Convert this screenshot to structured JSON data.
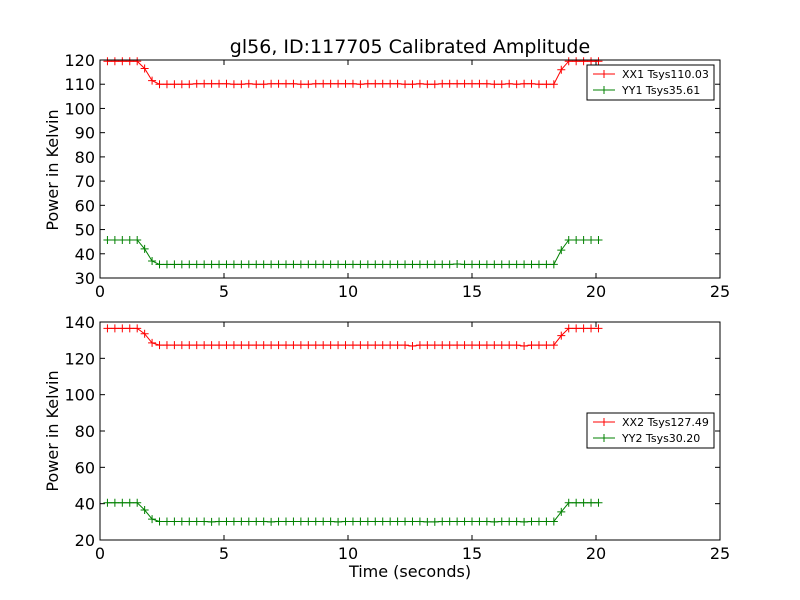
{
  "chart_data": [
    {
      "type": "line",
      "title": "gl56, ID:117705 Calibrated Amplitude",
      "xlabel": "",
      "ylabel": "Power in Kelvin",
      "xlim": [
        0,
        25
      ],
      "ylim": [
        30,
        120
      ],
      "xticks": [
        "0",
        "5",
        "10",
        "15",
        "20",
        "25"
      ],
      "yticks": [
        "30",
        "40",
        "50",
        "60",
        "70",
        "80",
        "90",
        "100",
        "110",
        "120"
      ],
      "legend_position": "top-right",
      "series": [
        {
          "name": "XX1 Tsys110.03",
          "color": "#ff0000",
          "x": [
            0.3,
            0.6,
            0.9,
            1.2,
            1.5,
            1.8,
            2.1,
            2.4,
            2.7,
            3.0,
            3.3,
            3.6,
            3.9,
            4.2,
            4.5,
            4.8,
            5.1,
            5.4,
            5.7,
            6.0,
            6.3,
            6.6,
            6.9,
            7.2,
            7.5,
            7.8,
            8.1,
            8.4,
            8.7,
            9.0,
            9.3,
            9.6,
            9.9,
            10.2,
            10.5,
            10.8,
            11.1,
            11.4,
            11.7,
            12.0,
            12.3,
            12.6,
            12.9,
            13.2,
            13.5,
            13.8,
            14.1,
            14.4,
            14.7,
            15.0,
            15.3,
            15.6,
            15.9,
            16.2,
            16.5,
            16.8,
            17.1,
            17.4,
            17.7,
            18.0,
            18.3,
            18.6,
            18.9,
            19.2,
            19.5,
            19.8,
            20.1
          ],
          "y": [
            119.5,
            119.5,
            119.5,
            119.5,
            119.5,
            116.5,
            111.5,
            110,
            110,
            110,
            110,
            110,
            110.2,
            110.2,
            110.2,
            110.2,
            110.2,
            110,
            110,
            110.2,
            110,
            110,
            110.2,
            110.2,
            110.2,
            110.2,
            110,
            110,
            110.2,
            110.2,
            110.2,
            110.2,
            110.2,
            110.2,
            110,
            110.2,
            110.2,
            110.2,
            110.2,
            110.2,
            110,
            110,
            110.2,
            110,
            110,
            110.2,
            110.2,
            110.2,
            110.2,
            110.2,
            110.2,
            110.2,
            110,
            110,
            110.2,
            110,
            110.2,
            110.2,
            110,
            110,
            110,
            116,
            119.5,
            119.5,
            119.5,
            119.5,
            119.5
          ]
        },
        {
          "name": "YY1 Tsys35.61",
          "color": "#008000",
          "x": [
            0.3,
            0.6,
            0.9,
            1.2,
            1.5,
            1.8,
            2.1,
            2.4,
            2.7,
            3.0,
            3.3,
            3.6,
            3.9,
            4.2,
            4.5,
            4.8,
            5.1,
            5.4,
            5.7,
            6.0,
            6.3,
            6.6,
            6.9,
            7.2,
            7.5,
            7.8,
            8.1,
            8.4,
            8.7,
            9.0,
            9.3,
            9.6,
            9.9,
            10.2,
            10.5,
            10.8,
            11.1,
            11.4,
            11.7,
            12.0,
            12.3,
            12.6,
            12.9,
            13.2,
            13.5,
            13.8,
            14.1,
            14.4,
            14.7,
            15.0,
            15.3,
            15.6,
            15.9,
            16.2,
            16.5,
            16.8,
            17.1,
            17.4,
            17.7,
            18.0,
            18.3,
            18.6,
            18.9,
            19.2,
            19.5,
            19.8,
            20.1
          ],
          "y": [
            45.7,
            45.7,
            45.7,
            45.7,
            45.7,
            42,
            37,
            35.6,
            35.6,
            35.6,
            35.6,
            35.6,
            35.6,
            35.6,
            35.6,
            35.6,
            35.6,
            35.6,
            35.6,
            35.6,
            35.6,
            35.6,
            35.6,
            35.6,
            35.6,
            35.6,
            35.6,
            35.6,
            35.6,
            35.6,
            35.6,
            35.6,
            35.6,
            35.6,
            35.6,
            35.6,
            35.6,
            35.6,
            35.6,
            35.6,
            35.6,
            35.6,
            35.6,
            35.6,
            35.6,
            35.6,
            35.6,
            35.8,
            35.6,
            35.6,
            35.6,
            35.6,
            35.6,
            35.6,
            35.6,
            35.6,
            35.6,
            35.6,
            35.6,
            35.6,
            35.6,
            41.5,
            45.7,
            45.7,
            45.7,
            45.7,
            45.7
          ]
        }
      ]
    },
    {
      "type": "line",
      "title": "",
      "xlabel": "Time (seconds)",
      "ylabel": "Power in Kelvin",
      "xlim": [
        0,
        25
      ],
      "ylim": [
        20,
        140
      ],
      "xticks": [
        "0",
        "5",
        "10",
        "15",
        "20",
        "25"
      ],
      "yticks": [
        "20",
        "40",
        "60",
        "80",
        "100",
        "120",
        "140"
      ],
      "legend_position": "center-right",
      "series": [
        {
          "name": "XX2 Tsys127.49",
          "color": "#ff0000",
          "x": [
            0.3,
            0.6,
            0.9,
            1.2,
            1.5,
            1.8,
            2.1,
            2.4,
            2.7,
            3.0,
            3.3,
            3.6,
            3.9,
            4.2,
            4.5,
            4.8,
            5.1,
            5.4,
            5.7,
            6.0,
            6.3,
            6.6,
            6.9,
            7.2,
            7.5,
            7.8,
            8.1,
            8.4,
            8.7,
            9.0,
            9.3,
            9.6,
            9.9,
            10.2,
            10.5,
            10.8,
            11.1,
            11.4,
            11.7,
            12.0,
            12.3,
            12.6,
            12.9,
            13.2,
            13.5,
            13.8,
            14.1,
            14.4,
            14.7,
            15.0,
            15.3,
            15.6,
            15.9,
            16.2,
            16.5,
            16.8,
            17.1,
            17.4,
            17.7,
            18.0,
            18.3,
            18.6,
            18.9,
            19.2,
            19.5,
            19.8,
            20.1
          ],
          "y": [
            136.5,
            136.5,
            136.5,
            136.5,
            136.5,
            133.5,
            128.5,
            127.3,
            127.3,
            127.3,
            127.3,
            127.3,
            127.3,
            127.3,
            127.3,
            127.3,
            127.3,
            127.3,
            127.3,
            127.3,
            127.3,
            127.3,
            127.3,
            127.3,
            127.3,
            127.3,
            127.3,
            127.3,
            127.3,
            127.3,
            127.3,
            127.3,
            127.3,
            127.3,
            127.3,
            127.3,
            127.3,
            127.3,
            127.3,
            127.3,
            127.3,
            126.8,
            127.3,
            127.3,
            127.3,
            127.3,
            127.3,
            127.3,
            127.3,
            127.3,
            127.3,
            127.3,
            127.3,
            127.3,
            127.3,
            127.3,
            126.8,
            127.3,
            127.3,
            127.3,
            127.3,
            132.5,
            136.5,
            136.5,
            136.5,
            136.5,
            136.5
          ]
        },
        {
          "name": "YY2 Tsys30.20",
          "color": "#008000",
          "x": [
            0.3,
            0.6,
            0.9,
            1.2,
            1.5,
            1.8,
            2.1,
            2.4,
            2.7,
            3.0,
            3.3,
            3.6,
            3.9,
            4.2,
            4.5,
            4.8,
            5.1,
            5.4,
            5.7,
            6.0,
            6.3,
            6.6,
            6.9,
            7.2,
            7.5,
            7.8,
            8.1,
            8.4,
            8.7,
            9.0,
            9.3,
            9.6,
            9.9,
            10.2,
            10.5,
            10.8,
            11.1,
            11.4,
            11.7,
            12.0,
            12.3,
            12.6,
            12.9,
            13.2,
            13.5,
            13.8,
            14.1,
            14.4,
            14.7,
            15.0,
            15.3,
            15.6,
            15.9,
            16.2,
            16.5,
            16.8,
            17.1,
            17.4,
            17.7,
            18.0,
            18.3,
            18.6,
            18.9,
            19.2,
            19.5,
            19.8,
            20.1
          ],
          "y": [
            40.5,
            40.5,
            40.5,
            40.5,
            40.5,
            36.5,
            31.5,
            30.2,
            30.2,
            30.2,
            30.2,
            30.2,
            30.2,
            30.2,
            30,
            30.2,
            30.2,
            30.2,
            30.2,
            30.2,
            30.2,
            30.2,
            30,
            30.2,
            30.2,
            30.2,
            30.2,
            30.2,
            30.2,
            30.2,
            30.2,
            30,
            30.2,
            30.2,
            30.2,
            30.2,
            30.2,
            30.2,
            30.2,
            30.2,
            30.2,
            30.2,
            30.2,
            30,
            30,
            30.2,
            30.2,
            30.2,
            30.2,
            30.2,
            30.2,
            30.2,
            30,
            30.2,
            30.2,
            30.2,
            30,
            30.2,
            30.2,
            30.2,
            30.2,
            35.5,
            40.5,
            40.5,
            40.5,
            40.5,
            40.5
          ]
        }
      ]
    }
  ]
}
